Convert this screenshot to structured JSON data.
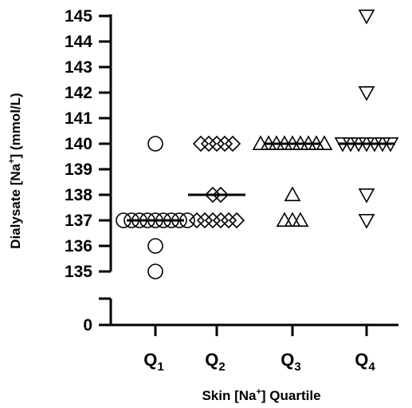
{
  "chart_data": {
    "type": "scatter",
    "title": "",
    "ylabel": {
      "pre": "Dialysate [Na",
      "sup": "+",
      "post": "] (mmol/L)"
    },
    "xlabel": {
      "pre": "Skin [Na",
      "sup": "+",
      "post": "] Quartile"
    },
    "y_axis": {
      "broken": true,
      "lower_segment_ticks": [
        0
      ],
      "upper_segment_range": [
        135,
        145
      ],
      "upper_segment_ticks": [
        135,
        136,
        137,
        138,
        139,
        140,
        141,
        142,
        143,
        144,
        145
      ]
    },
    "categories": [
      {
        "label": "Q",
        "sub": "1"
      },
      {
        "label": "Q",
        "sub": "2"
      },
      {
        "label": "Q",
        "sub": "3"
      },
      {
        "label": "Q",
        "sub": "4"
      }
    ],
    "series": [
      {
        "category": "Q1",
        "marker": "circle",
        "median": 137,
        "points": [
          {
            "y": 140,
            "count": 1
          },
          {
            "y": 137,
            "count": 9
          },
          {
            "y": 136,
            "count": 1
          },
          {
            "y": 135,
            "count": 1
          }
        ]
      },
      {
        "category": "Q2",
        "marker": "diamond",
        "median": 138,
        "points": [
          {
            "y": 140,
            "count": 5
          },
          {
            "y": 138,
            "count": 2
          },
          {
            "y": 137,
            "count": 6
          }
        ]
      },
      {
        "category": "Q3",
        "marker": "triangle-up",
        "median": 140,
        "points": [
          {
            "y": 140,
            "count": 9
          },
          {
            "y": 138,
            "count": 1
          },
          {
            "y": 137,
            "count": 3
          }
        ]
      },
      {
        "category": "Q4",
        "marker": "triangle-down",
        "median": 140,
        "points": [
          {
            "y": 145,
            "count": 1
          },
          {
            "y": 142,
            "count": 1
          },
          {
            "y": 140,
            "count": 7
          },
          {
            "y": 138,
            "count": 1
          },
          {
            "y": 137,
            "count": 1
          }
        ]
      }
    ]
  }
}
